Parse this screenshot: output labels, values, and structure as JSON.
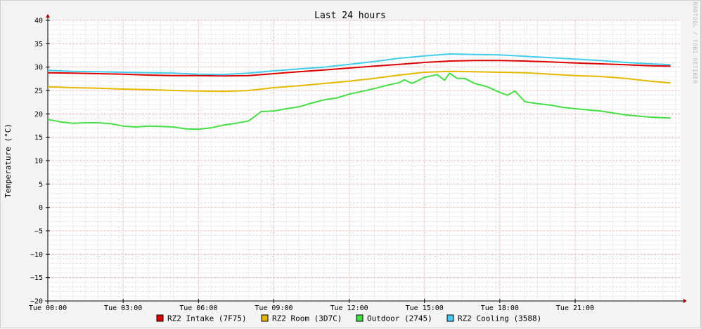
{
  "chart_data": {
    "type": "line",
    "title": "Last 24 hours",
    "ylabel": "Temperature (°C)",
    "xlabel": "",
    "watermark": "RRDTOOL / TOBI OETIKER",
    "ylim": [
      -20,
      40
    ],
    "y_ticks": [
      -20,
      -15,
      -10,
      -5,
      0,
      5,
      10,
      15,
      20,
      25,
      30,
      35,
      40
    ],
    "x_range_hours": [
      0,
      25.2
    ],
    "x_ticks": [
      {
        "label": "Tue 00:00",
        "hour": 0
      },
      {
        "label": "Tue 03:00",
        "hour": 3
      },
      {
        "label": "Tue 06:00",
        "hour": 6
      },
      {
        "label": "Tue 09:00",
        "hour": 9
      },
      {
        "label": "Tue 12:00",
        "hour": 12
      },
      {
        "label": "Tue 15:00",
        "hour": 15
      },
      {
        "label": "Tue 18:00",
        "hour": 18
      },
      {
        "label": "Tue 21:00",
        "hour": 21
      }
    ],
    "grid": true,
    "legend_position": "bottom",
    "series": [
      {
        "name": "RZ2 Intake (7F75)",
        "color": "#DD0000",
        "x": [
          0,
          1,
          2,
          3,
          4,
          5,
          6,
          7,
          8,
          9,
          10,
          11,
          12,
          13,
          14,
          15,
          16,
          17,
          18,
          19,
          20,
          21,
          22,
          23,
          24,
          24.8
        ],
        "y": [
          28.8,
          28.7,
          28.6,
          28.5,
          28.3,
          28.2,
          28.2,
          28.1,
          28.2,
          28.6,
          29.0,
          29.4,
          29.8,
          30.2,
          30.6,
          31.0,
          31.3,
          31.4,
          31.4,
          31.3,
          31.1,
          30.9,
          30.7,
          30.5,
          30.3,
          30.2
        ]
      },
      {
        "name": "RZ2 Room (3D7C)",
        "color": "#E6B800",
        "x": [
          0,
          1,
          2,
          3,
          4,
          5,
          6,
          7,
          8,
          9,
          10,
          11,
          12,
          13,
          14,
          15,
          16,
          17,
          18,
          19,
          20,
          21,
          22,
          23,
          24,
          24.8
        ],
        "y": [
          25.8,
          25.6,
          25.5,
          25.3,
          25.2,
          25.0,
          24.9,
          24.8,
          25.0,
          25.6,
          26.0,
          26.5,
          27.0,
          27.6,
          28.3,
          28.9,
          29.1,
          29.0,
          28.9,
          28.8,
          28.5,
          28.2,
          28.0,
          27.6,
          27.0,
          26.6
        ]
      },
      {
        "name": "Outdoor (2745)",
        "color": "#44DD44",
        "x": [
          0,
          0.5,
          1,
          1.5,
          2,
          2.5,
          3,
          3.5,
          4,
          4.5,
          5,
          5.5,
          6,
          6.5,
          7,
          7.5,
          8,
          8.5,
          9,
          9.5,
          10,
          10.5,
          11,
          11.5,
          12,
          12.5,
          13,
          13.5,
          14,
          14.2,
          14.5,
          15,
          15.5,
          15.8,
          16,
          16.3,
          16.6,
          17,
          17.5,
          18,
          18.3,
          18.6,
          19,
          19.5,
          20,
          20.5,
          21,
          22,
          23,
          24,
          24.8
        ],
        "y": [
          18.8,
          18.3,
          18.0,
          18.1,
          18.1,
          17.9,
          17.4,
          17.2,
          17.4,
          17.3,
          17.2,
          16.8,
          16.7,
          17.0,
          17.6,
          18.0,
          18.5,
          20.5,
          20.6,
          21.1,
          21.5,
          22.3,
          23.0,
          23.4,
          24.2,
          24.8,
          25.4,
          26.1,
          26.7,
          27.3,
          26.5,
          27.8,
          28.4,
          27.2,
          28.7,
          27.6,
          27.6,
          26.5,
          25.8,
          24.6,
          24.0,
          24.9,
          22.6,
          22.2,
          21.9,
          21.4,
          21.1,
          20.6,
          19.8,
          19.3,
          19.1
        ]
      },
      {
        "name": "RZ2 Cooling (3588)",
        "color": "#44CCEE",
        "x": [
          0,
          1,
          2,
          3,
          4,
          5,
          6,
          7,
          8,
          9,
          10,
          11,
          12,
          13,
          14,
          15,
          16,
          17,
          18,
          19,
          20,
          21,
          22,
          23,
          24,
          24.8
        ],
        "y": [
          29.3,
          29.1,
          29.0,
          28.9,
          28.8,
          28.7,
          28.5,
          28.4,
          28.7,
          29.2,
          29.6,
          30.0,
          30.6,
          31.2,
          31.9,
          32.4,
          32.8,
          32.7,
          32.6,
          32.3,
          32.0,
          31.7,
          31.4,
          31.0,
          30.7,
          30.5
        ]
      }
    ]
  }
}
